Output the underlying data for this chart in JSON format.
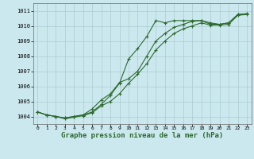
{
  "background_color": "#cce8ef",
  "grid_color": "#aacccc",
  "line_color": "#2d6a2d",
  "marker_color": "#2d6a2d",
  "title": "Graphe pression niveau de la mer (hPa)",
  "xlim": [
    -0.5,
    23.5
  ],
  "ylim": [
    1003.5,
    1011.5
  ],
  "yticks": [
    1004,
    1005,
    1006,
    1007,
    1008,
    1009,
    1010,
    1011
  ],
  "xticks": [
    0,
    1,
    2,
    3,
    4,
    5,
    6,
    7,
    8,
    9,
    10,
    11,
    12,
    13,
    14,
    15,
    16,
    17,
    18,
    19,
    20,
    21,
    22,
    23
  ],
  "line1_x": [
    0,
    1,
    2,
    3,
    4,
    5,
    6,
    7,
    8,
    9,
    10,
    11,
    12,
    13,
    14,
    15,
    16,
    17,
    18,
    19,
    20,
    21,
    22,
    23
  ],
  "line1_y": [
    1004.3,
    1004.1,
    1004.0,
    1003.9,
    1004.0,
    1004.1,
    1004.3,
    1004.8,
    1005.4,
    1006.2,
    1007.8,
    1008.5,
    1009.3,
    1010.35,
    1010.2,
    1010.35,
    1010.35,
    1010.35,
    1010.35,
    1010.2,
    1010.1,
    1010.2,
    1010.75,
    1010.8
  ],
  "line2_x": [
    0,
    1,
    2,
    3,
    4,
    5,
    6,
    7,
    8,
    9,
    10,
    11,
    12,
    13,
    14,
    15,
    16,
    17,
    18,
    19,
    20,
    21,
    22,
    23
  ],
  "line2_y": [
    1004.3,
    1004.1,
    1004.0,
    1003.9,
    1004.0,
    1004.1,
    1004.5,
    1005.1,
    1005.5,
    1006.25,
    1006.5,
    1007.0,
    1008.0,
    1009.0,
    1009.5,
    1009.9,
    1010.1,
    1010.3,
    1010.35,
    1010.1,
    1010.1,
    1010.2,
    1010.75,
    1010.8
  ],
  "line3_x": [
    0,
    1,
    2,
    3,
    4,
    5,
    6,
    7,
    8,
    9,
    10,
    11,
    12,
    13,
    14,
    15,
    16,
    17,
    18,
    19,
    20,
    21,
    22,
    23
  ],
  "line3_y": [
    1004.3,
    1004.1,
    1004.0,
    1003.85,
    1003.95,
    1004.05,
    1004.25,
    1004.7,
    1005.0,
    1005.5,
    1006.2,
    1006.8,
    1007.5,
    1008.4,
    1009.0,
    1009.5,
    1009.8,
    1010.0,
    1010.2,
    1010.05,
    1010.05,
    1010.1,
    1010.7,
    1010.75
  ]
}
